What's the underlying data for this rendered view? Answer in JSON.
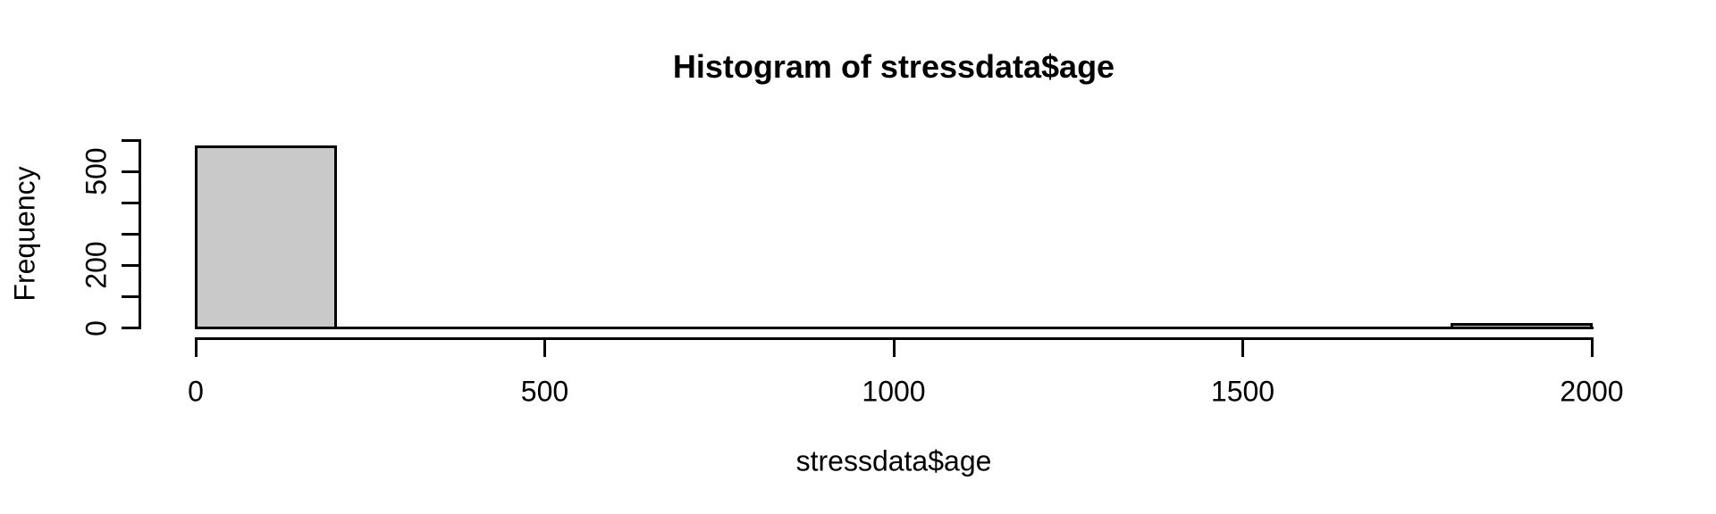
{
  "figure": {
    "background": "#FFFFFF"
  },
  "chart_data": {
    "type": "bar",
    "subtype": "histogram",
    "title": "Histogram of stressdata$age",
    "xlabel": "stressdata$age",
    "ylabel": "Frequency",
    "bin_edges": [
      0,
      200,
      400,
      600,
      800,
      1000,
      1200,
      1400,
      1600,
      1800,
      2000
    ],
    "counts": [
      580,
      0,
      0,
      0,
      0,
      0,
      0,
      0,
      0,
      10
    ],
    "x_ticks": [
      0,
      500,
      1000,
      1500,
      2000
    ],
    "x_tick_labels": [
      "0",
      "500",
      "1000",
      "1500",
      "2000"
    ],
    "y_ticks": [
      0,
      100,
      200,
      300,
      400,
      500,
      600
    ],
    "y_ticks_labeled": [
      0,
      200,
      500
    ],
    "y_tick_labels_shown": [
      "0",
      "200",
      "500"
    ],
    "xlim": [
      0,
      2000
    ],
    "ylim": [
      0,
      600
    ],
    "grid": false,
    "legend": false,
    "bar_fill": "#C9C9C9",
    "bar_border": "#000000",
    "axis_color": "#000000",
    "text_color": "#000000"
  }
}
